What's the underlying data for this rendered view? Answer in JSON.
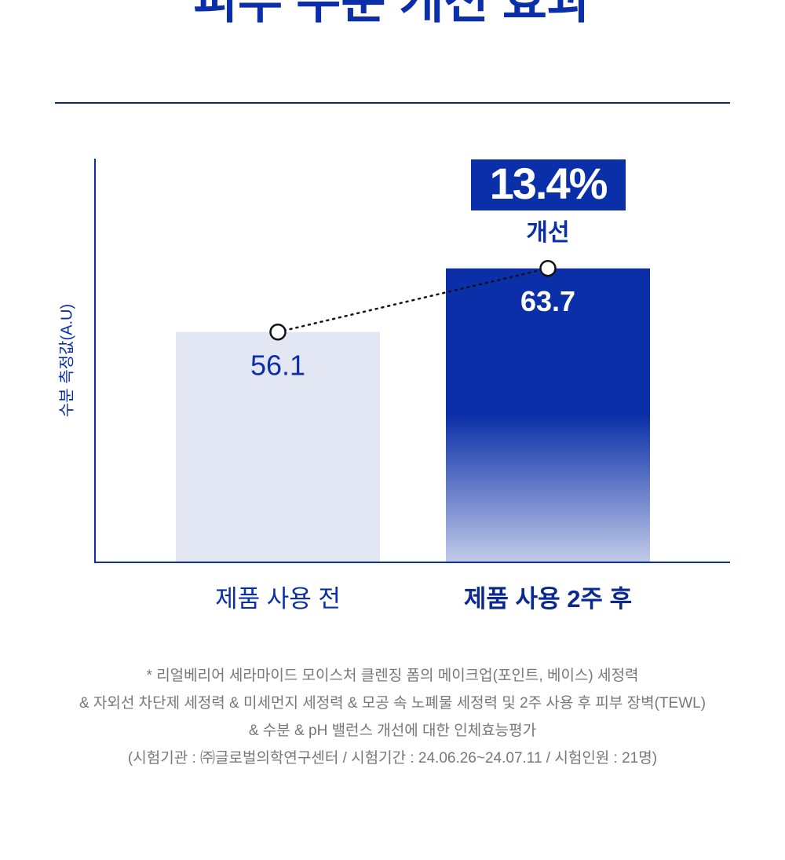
{
  "chart_data": {
    "type": "bar",
    "title": "피부 수분 개선 효과",
    "y_label": "수분 측정값(A.U)",
    "categories": [
      "제품 사용 전",
      "제품 사용 2주 후"
    ],
    "values": [
      56.1,
      63.7
    ],
    "colors": [
      "#e3e6f3",
      "#0b2fa8"
    ],
    "ylim": [
      28.6,
      76.8
    ],
    "annotation": "13.4%",
    "annotation_sub": "개선",
    "footnotes": [
      "* 리얼베리어 세라마이드 모이스처 클렌징 폼의 메이크업(포인트, 베이스) 세정력",
      "& 자외선 차단제 세정력 & 미세먼지 세정력 & 모공 속 노폐물 세정력 및 2주 사용 후 피부 장벽(TEWL)",
      "& 수분 & pH 밸런스 개선에 대한 인체효능평가",
      "(시험기관 : ㈜글로벌의학연구센터 / 시험기간 : 24.06.26~24.07.11 / 시험인원 : 21명)"
    ]
  }
}
